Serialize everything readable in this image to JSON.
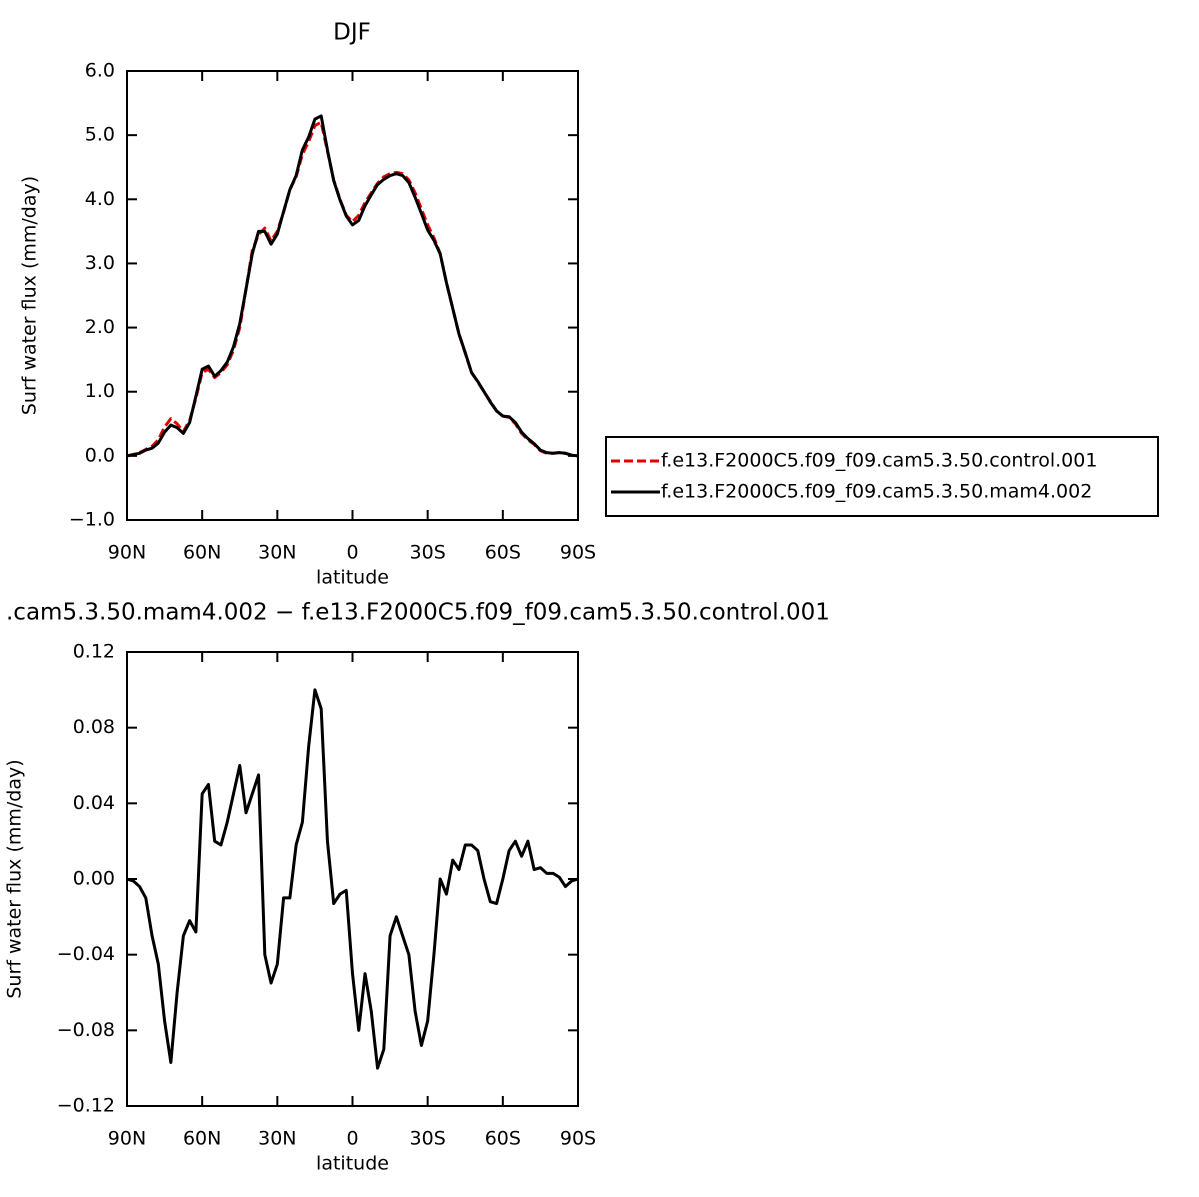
{
  "chart_data": [
    {
      "type": "line",
      "title": "DJF",
      "xlabel": "latitude",
      "ylabel": "Surf water flux (mm/day)",
      "x": [
        90,
        87.5,
        85,
        82.5,
        80,
        77.5,
        75,
        72.5,
        70,
        67.5,
        65,
        62.5,
        60,
        57.5,
        55,
        52.5,
        50,
        47.5,
        45,
        42.5,
        40,
        37.5,
        35,
        32.5,
        30,
        27.5,
        25,
        22.5,
        20,
        17.5,
        15,
        12.5,
        10,
        7.5,
        5,
        2.5,
        0,
        -2.5,
        -5,
        -7.5,
        -10,
        -12.5,
        -15,
        -17.5,
        -20,
        -22.5,
        -25,
        -27.5,
        -30,
        -32.5,
        -35,
        -37.5,
        -40,
        -42.5,
        -45,
        -47.5,
        -50,
        -52.5,
        -55,
        -57.5,
        -60,
        -62.5,
        -65,
        -67.5,
        -70,
        -72.5,
        -75,
        -77.5,
        -80,
        -82.5,
        -85,
        -87.5,
        -90
      ],
      "series": [
        {
          "name": "f.e13.F2000C5.f09_f09.cam5.3.50.control.001",
          "color": "#e00000",
          "line_style": "dashed",
          "values": [
            0,
            0.02,
            0.05,
            0.1,
            0.15,
            0.25,
            0.45,
            0.58,
            0.5,
            0.38,
            0.55,
            0.9,
            1.3,
            1.35,
            1.22,
            1.3,
            1.42,
            1.65,
            2.0,
            2.6,
            3.2,
            3.45,
            3.55,
            3.35,
            3.5,
            3.8,
            4.15,
            4.35,
            4.7,
            4.9,
            5.15,
            5.2,
            4.75,
            4.3,
            4.0,
            3.75,
            3.65,
            3.75,
            3.95,
            4.1,
            4.25,
            4.35,
            4.4,
            4.42,
            4.4,
            4.3,
            4.1,
            3.85,
            3.6,
            3.4,
            3.15,
            2.7,
            2.3,
            1.9,
            1.6,
            1.3,
            1.15,
            1.0,
            0.85,
            0.7,
            0.62,
            0.6,
            0.5,
            0.35,
            0.25,
            0.18,
            0.08,
            0.04,
            0.04,
            0.05,
            0.04,
            0.01,
            0
          ]
        },
        {
          "name": "f.e13.F2000C5.f09_f09.cam5.3.50.mam4.002",
          "color": "#000000",
          "line_style": "solid",
          "values": [
            0,
            0.02,
            0.04,
            0.09,
            0.12,
            0.2,
            0.37,
            0.48,
            0.44,
            0.35,
            0.52,
            0.93,
            1.35,
            1.4,
            1.24,
            1.33,
            1.46,
            1.7,
            2.06,
            2.6,
            3.15,
            3.5,
            3.5,
            3.3,
            3.46,
            3.81,
            4.15,
            4.37,
            4.77,
            4.97,
            5.25,
            5.3,
            4.77,
            4.29,
            3.99,
            3.74,
            3.6,
            3.67,
            3.9,
            4.07,
            4.23,
            4.31,
            4.37,
            4.4,
            4.37,
            4.26,
            4.03,
            3.78,
            3.52,
            3.36,
            3.15,
            2.7,
            2.3,
            1.9,
            1.61,
            1.3,
            1.16,
            1.0,
            0.84,
            0.7,
            0.62,
            0.61,
            0.52,
            0.37,
            0.27,
            0.19,
            0.09,
            0.05,
            0.04,
            0.05,
            0.04,
            0.01,
            0
          ]
        }
      ],
      "xlim": [
        90,
        -90
      ],
      "xticks": [
        {
          "value": 90,
          "label": "90N"
        },
        {
          "value": 60,
          "label": "60N"
        },
        {
          "value": 30,
          "label": "30N"
        },
        0,
        {
          "value": -30,
          "label": "30S"
        },
        {
          "value": -60,
          "label": "60S"
        },
        {
          "value": -90,
          "label": "90S"
        }
      ],
      "ylim": [
        -1.0,
        6.0
      ],
      "yticks": [
        {
          "value": -1.0,
          "label": "−1.0"
        },
        {
          "value": 0,
          "label": "0.0"
        },
        {
          "value": 1,
          "label": "1.0"
        },
        {
          "value": 2,
          "label": "2.0"
        },
        {
          "value": 3,
          "label": "3.0"
        },
        {
          "value": 4,
          "label": "4.0"
        },
        {
          "value": 5,
          "label": "5.0"
        },
        {
          "value": 6,
          "label": "6.0"
        }
      ],
      "legend_position": "right"
    },
    {
      "type": "line",
      "title": ".cam5.3.50.mam4.002 − f.e13.F2000C5.f09_f09.cam5.3.50.control.001",
      "xlabel": "latitude",
      "ylabel": "Surf water flux (mm/day)",
      "x": [
        90,
        87.5,
        85,
        82.5,
        80,
        77.5,
        75,
        72.5,
        70,
        67.5,
        65,
        62.5,
        60,
        57.5,
        55,
        52.5,
        50,
        47.5,
        45,
        42.5,
        40,
        37.5,
        35,
        32.5,
        30,
        27.5,
        25,
        22.5,
        20,
        17.5,
        15,
        12.5,
        10,
        7.5,
        5,
        2.5,
        0,
        -2.5,
        -5,
        -7.5,
        -10,
        -12.5,
        -15,
        -17.5,
        -20,
        -22.5,
        -25,
        -27.5,
        -30,
        -32.5,
        -35,
        -37.5,
        -40,
        -42.5,
        -45,
        -47.5,
        -50,
        -52.5,
        -55,
        -57.5,
        -60,
        -62.5,
        -65,
        -67.5,
        -70,
        -72.5,
        -75,
        -77.5,
        -80,
        -82.5,
        -85,
        -87.5,
        -90
      ],
      "color": "#000000",
      "values": [
        0,
        -0.001,
        -0.004,
        -0.01,
        -0.03,
        -0.045,
        -0.075,
        -0.097,
        -0.06,
        -0.03,
        -0.022,
        -0.028,
        0.045,
        0.05,
        0.02,
        0.018,
        0.03,
        0.045,
        0.06,
        0.035,
        0.045,
        0.055,
        -0.04,
        -0.055,
        -0.045,
        -0.01,
        -0.01,
        0.018,
        0.03,
        0.07,
        0.1,
        0.09,
        0.02,
        -0.013,
        -0.008,
        -0.006,
        -0.05,
        -0.08,
        -0.05,
        -0.07,
        -0.1,
        -0.09,
        -0.03,
        -0.02,
        -0.03,
        -0.04,
        -0.07,
        -0.088,
        -0.075,
        -0.04,
        0,
        -0.008,
        0.01,
        0.005,
        0.018,
        0.018,
        0.015,
        0,
        -0.012,
        -0.013,
        0,
        0.015,
        0.02,
        0.012,
        0.02,
        0.005,
        0.006,
        0.003,
        0.003,
        0.001,
        -0.004,
        -0.001,
        0
      ],
      "xlim": [
        90,
        -90
      ],
      "xticks": [
        {
          "value": 90,
          "label": "90N"
        },
        {
          "value": 60,
          "label": "60N"
        },
        {
          "value": 30,
          "label": "30N"
        },
        0,
        {
          "value": -30,
          "label": "30S"
        },
        {
          "value": -60,
          "label": "60S"
        },
        {
          "value": -90,
          "label": "90S"
        }
      ],
      "ylim": [
        -0.12,
        0.12
      ],
      "yticks": [
        {
          "value": -0.12,
          "label": "−0.12"
        },
        {
          "value": -0.08,
          "label": "−0.08"
        },
        {
          "value": -0.04,
          "label": "−0.04"
        },
        {
          "value": 0,
          "label": "0.00"
        },
        0.04,
        0.08,
        0.12
      ]
    }
  ]
}
